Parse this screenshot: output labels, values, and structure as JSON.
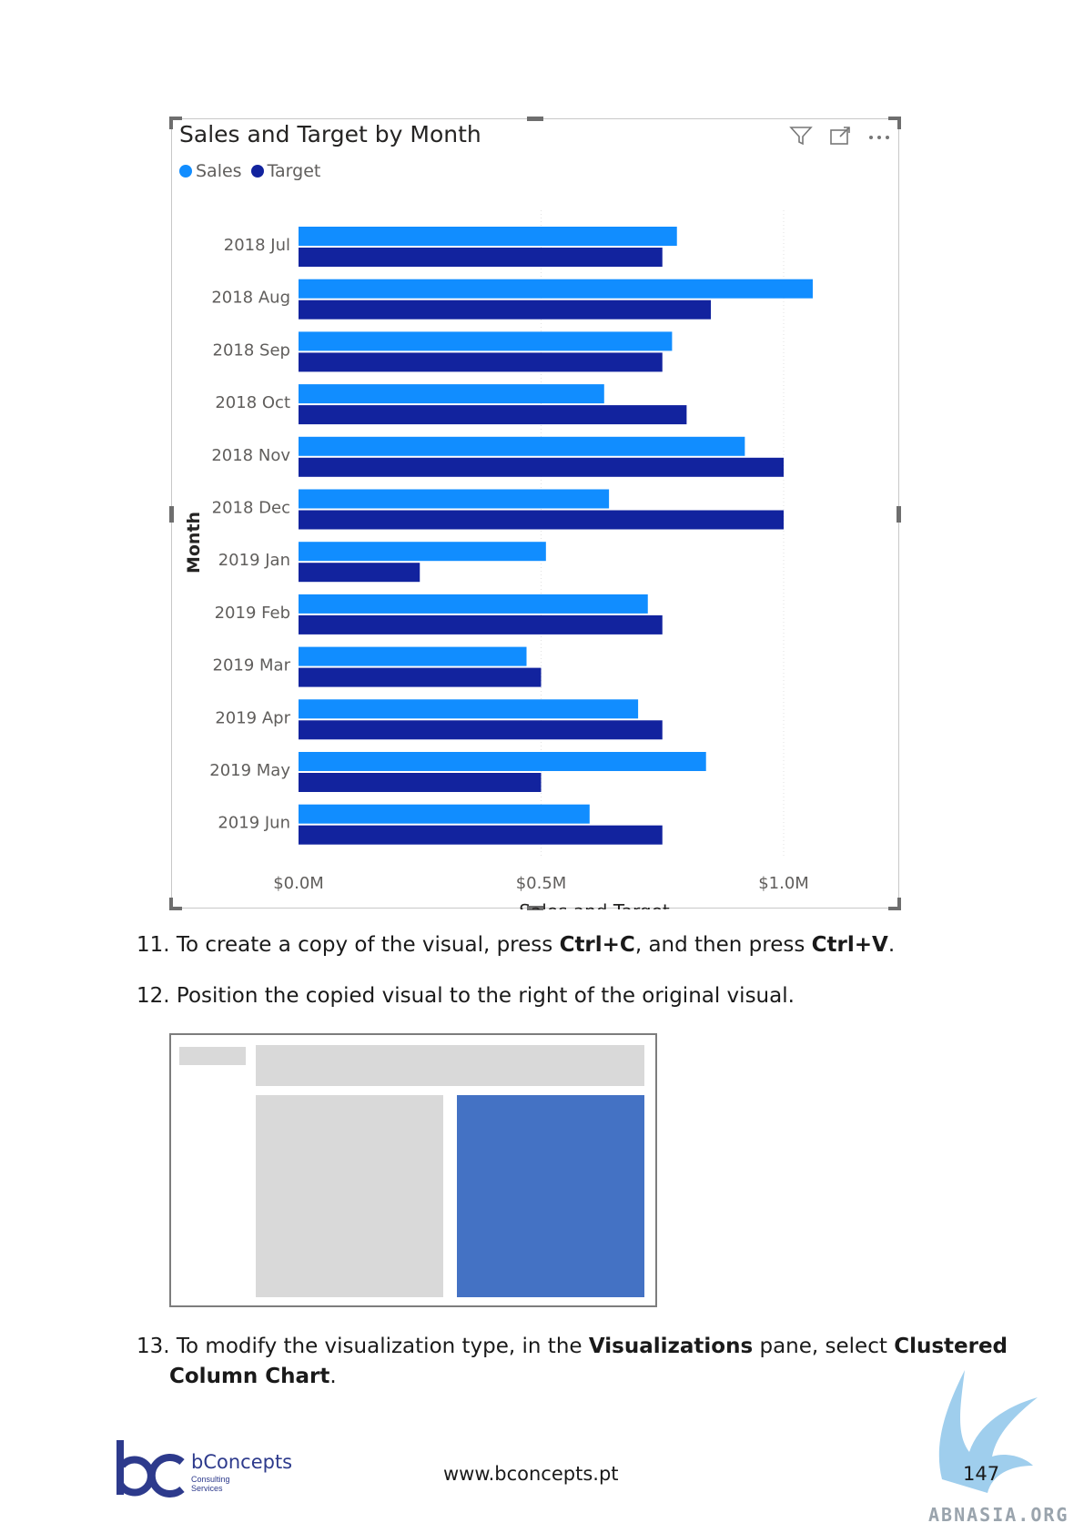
{
  "visual": {
    "title": "Sales and Target by Month",
    "icons": [
      "filter-icon",
      "focus-mode-icon",
      "more-options-icon"
    ]
  },
  "chart_data": {
    "type": "bar",
    "orientation": "horizontal",
    "categories": [
      "2018 Jul",
      "2018 Aug",
      "2018 Sep",
      "2018 Oct",
      "2018 Nov",
      "2018 Dec",
      "2019 Jan",
      "2019 Feb",
      "2019 Mar",
      "2019 Apr",
      "2019 May",
      "2019 Jun"
    ],
    "series": [
      {
        "name": "Sales",
        "color": "#118DFF",
        "values": [
          0.78,
          1.06,
          0.77,
          0.63,
          0.92,
          0.64,
          0.51,
          0.72,
          0.47,
          0.7,
          0.84,
          0.6
        ]
      },
      {
        "name": "Target",
        "color": "#12239E",
        "values": [
          0.75,
          0.85,
          0.75,
          0.8,
          1.0,
          1.0,
          0.25,
          0.75,
          0.5,
          0.75,
          0.5,
          0.75
        ]
      }
    ],
    "xlabel": "Sales and Target",
    "ylabel": "Month",
    "xlim": [
      0,
      1.1
    ],
    "xticks": [
      0,
      0.5,
      1.0
    ],
    "xtick_labels": [
      "$0.0M",
      "$0.5M",
      "$1.0M"
    ],
    "grid": true,
    "legend_position": "top-left"
  },
  "steps": [
    {
      "number": "11.",
      "parts": [
        {
          "text": "To create a copy of the visual, press ",
          "bold": false
        },
        {
          "text": "Ctrl+C",
          "bold": true
        },
        {
          "text": ", and then press ",
          "bold": false
        },
        {
          "text": "Ctrl+V",
          "bold": true
        },
        {
          "text": ".",
          "bold": false
        }
      ]
    },
    {
      "number": "12.",
      "parts": [
        {
          "text": "Position the copied visual to the right of the original visual.",
          "bold": false
        }
      ]
    },
    {
      "number": "13.",
      "parts": [
        {
          "text": "To modify the visualization type, in the ",
          "bold": false
        },
        {
          "text": "Visualizations",
          "bold": true
        },
        {
          "text": " pane, select ",
          "bold": false
        },
        {
          "text": "Clustered",
          "bold": true
        }
      ]
    },
    {
      "number": "",
      "parts": [
        {
          "text": "Column Chart",
          "bold": true
        },
        {
          "text": ".",
          "bold": false
        }
      ]
    }
  ],
  "mockup": {
    "colors": {
      "panel": "#d9d9d9",
      "highlight": "#4472c4"
    }
  },
  "footer": {
    "brand_name": "bConcepts",
    "brand_sub_1": "Consulting",
    "brand_sub_2": "Services",
    "url": "www.bconcepts.pt",
    "page_number": "147",
    "watermark": "ABNASIA.ORG"
  }
}
